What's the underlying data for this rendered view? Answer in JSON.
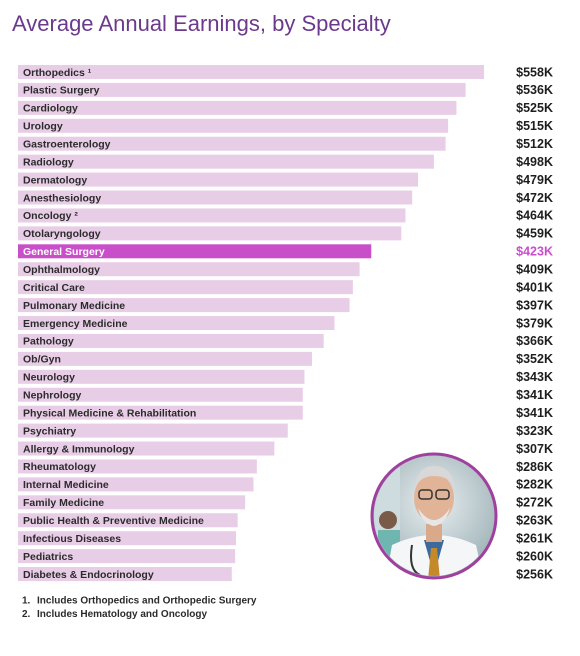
{
  "chart_data": {
    "type": "bar",
    "orientation": "horizontal",
    "title": "Average Annual Earnings, by Specialty",
    "categories": [
      "Orthopedics ¹",
      "Plastic Surgery",
      "Cardiology",
      "Urology",
      "Gastroenterology",
      "Radiology",
      "Dermatology",
      "Anesthesiology",
      "Oncology ²",
      "Otolaryngology",
      "General Surgery",
      "Ophthalmology",
      "Critical Care",
      "Pulmonary Medicine",
      "Emergency Medicine",
      "Pathology",
      "Ob/Gyn",
      "Neurology",
      "Nephrology",
      "Physical Medicine & Rehabilitation",
      "Psychiatry",
      "Allergy & Immunology",
      "Rheumatology",
      "Internal Medicine",
      "Family Medicine",
      "Public Health & Preventive Medicine",
      "Infectious Diseases",
      "Pediatrics",
      "Diabetes & Endocrinology"
    ],
    "values": [
      558000,
      536000,
      525000,
      515000,
      512000,
      498000,
      479000,
      472000,
      464000,
      459000,
      423000,
      409000,
      401000,
      397000,
      379000,
      366000,
      352000,
      343000,
      341000,
      341000,
      323000,
      307000,
      286000,
      282000,
      272000,
      263000,
      261000,
      260000,
      256000
    ],
    "value_labels": [
      "$558K",
      "$536K",
      "$525K",
      "$515K",
      "$512K",
      "$498K",
      "$479K",
      "$472K",
      "$464K",
      "$459K",
      "$423K",
      "$409K",
      "$401K",
      "$397K",
      "$379K",
      "$366K",
      "$352K",
      "$343K",
      "$341K",
      "$341K",
      "$323K",
      "$307K",
      "$286K",
      "$282K",
      "$272K",
      "$263K",
      "$261K",
      "$260K",
      "$256K"
    ],
    "color": "#e8cde6",
    "colors": [
      "#e8cde6",
      "#e8cde6",
      "#e8cde6",
      "#e8cde6",
      "#e8cde6",
      "#e8cde6",
      "#e8cde6",
      "#e8cde6",
      "#e8cde6",
      "#e8cde6",
      "#c94ec9",
      "#e8cde6",
      "#e8cde6",
      "#e8cde6",
      "#e8cde6",
      "#e8cde6",
      "#e8cde6",
      "#e8cde6",
      "#e8cde6",
      "#e8cde6",
      "#e8cde6",
      "#e8cde6",
      "#e8cde6",
      "#e8cde6",
      "#e8cde6",
      "#e8cde6",
      "#e8cde6",
      "#e8cde6",
      "#e8cde6"
    ],
    "footnotes": [
      {
        "marker": "1.",
        "text": "Includes Orthopedics and Orthopedic Surgery"
      },
      {
        "marker": "2.",
        "text": "Includes Hematology and Oncology"
      }
    ]
  }
}
